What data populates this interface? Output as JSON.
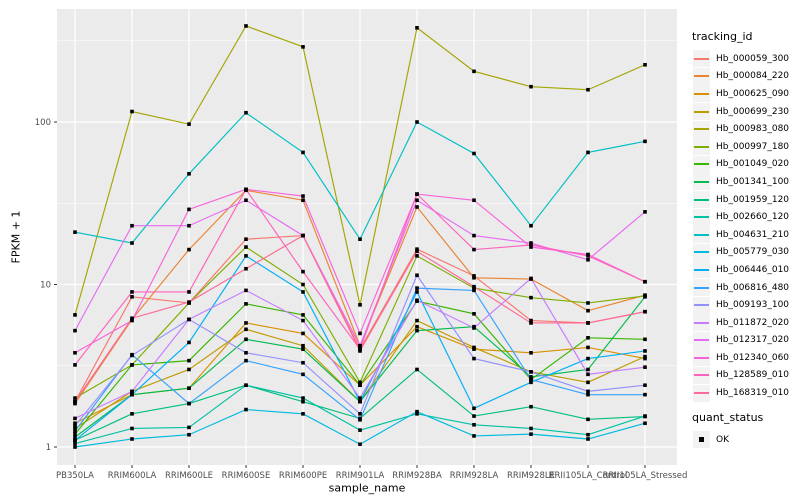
{
  "chart_data": {
    "type": "line",
    "title": "",
    "xlabel": "sample_name",
    "ylabel": "FPKM + 1",
    "y_scale": "log10",
    "ylim": [
      0.78,
      495
    ],
    "y_ticks": [
      1,
      10,
      100
    ],
    "grid": "ggplot-grey-theme",
    "panel_bg": "#EBEBEB",
    "gridline_color": "#FFFFFF",
    "tick_label_color": "#4D4D4D",
    "point_marker": "black-square",
    "legend_position": "right",
    "legend_title": "tracking_id",
    "categories": [
      "PB350LA",
      "RRIM600LA",
      "RRIM600LE",
      "RRIM600SE",
      "RRIM600PE",
      "RRIM901LA",
      "RRIM928BA",
      "RRIM928LA",
      "RRIM928LE",
      "RRII105LA_Control",
      "RRII105LA_Stressed"
    ],
    "series": [
      {
        "name": "Hb_000059_300",
        "color": "#F8766D",
        "values": [
          1.9,
          8.4,
          7.7,
          19,
          20,
          4.0,
          16.5,
          11.3,
          6.0,
          5.8,
          6.8
        ]
      },
      {
        "name": "Hb_000084_220",
        "color": "#EA8331",
        "values": [
          1.85,
          6.1,
          16.4,
          38,
          33,
          4.2,
          30,
          11.0,
          10.8,
          6.9,
          8.6
        ]
      },
      {
        "name": "Hb_000625_090",
        "color": "#D89000",
        "values": [
          1.4,
          2.1,
          2.3,
          5.8,
          5.0,
          2.4,
          5.5,
          4.0,
          3.8,
          4.1,
          3.5
        ]
      },
      {
        "name": "Hb_000699_230",
        "color": "#C09B00",
        "values": [
          1.3,
          2.2,
          3.0,
          5.3,
          4.2,
          1.9,
          6.0,
          4.1,
          2.9,
          2.5,
          3.6
        ]
      },
      {
        "name": "Hb_000983_080",
        "color": "#A3A500",
        "values": [
          6.5,
          116,
          97,
          390,
          290,
          7.5,
          380,
          205,
          165,
          158,
          225
        ]
      },
      {
        "name": "Hb_000997_180",
        "color": "#7CAE00",
        "values": [
          2.0,
          3.2,
          7.7,
          17,
          10,
          2.5,
          15,
          9.5,
          8.3,
          7.7,
          8.5
        ]
      },
      {
        "name": "Hb_001049_020",
        "color": "#39B600",
        "values": [
          1.2,
          3.2,
          3.4,
          7.6,
          6.5,
          2.4,
          7.9,
          6.6,
          2.6,
          4.7,
          4.6
        ]
      },
      {
        "name": "Hb_001341_100",
        "color": "#00BB4E",
        "values": [
          1.15,
          2.1,
          2.3,
          4.6,
          4.0,
          1.9,
          5.2,
          5.5,
          2.7,
          3.0,
          8.4
        ]
      },
      {
        "name": "Hb_001959_120",
        "color": "#00BF7D",
        "values": [
          1.1,
          1.6,
          1.85,
          2.4,
          1.9,
          1.5,
          3.0,
          1.55,
          1.77,
          1.48,
          1.54
        ]
      },
      {
        "name": "Hb_002660_120",
        "color": "#00C1A3",
        "values": [
          1.05,
          1.3,
          1.32,
          2.4,
          2.0,
          1.27,
          1.6,
          1.37,
          1.3,
          1.19,
          1.55
        ]
      },
      {
        "name": "Hb_004631_210",
        "color": "#00BFC4",
        "values": [
          21,
          18,
          48,
          114,
          65,
          19,
          100,
          64,
          23,
          65,
          76
        ]
      },
      {
        "name": "Hb_005779_030",
        "color": "#00BAE0",
        "values": [
          1.0,
          1.12,
          1.19,
          1.7,
          1.6,
          1.04,
          1.65,
          1.17,
          1.2,
          1.12,
          1.4
        ]
      },
      {
        "name": "Hb_006446_010",
        "color": "#00B0F6",
        "values": [
          1.1,
          2.1,
          4.4,
          15,
          9.0,
          1.9,
          9.0,
          1.73,
          2.5,
          3.5,
          3.9
        ]
      },
      {
        "name": "Hb_006816_480",
        "color": "#35A2FF",
        "values": [
          1.25,
          3.7,
          1.85,
          3.4,
          2.8,
          1.47,
          9.5,
          9.2,
          2.6,
          2.1,
          2.1
        ]
      },
      {
        "name": "Hb_009193_100",
        "color": "#9590FF",
        "values": [
          1.35,
          3.66,
          6.1,
          3.8,
          3.3,
          1.6,
          11.4,
          3.5,
          2.9,
          2.2,
          2.4
        ]
      },
      {
        "name": "Hb_011872_020",
        "color": "#C77CFF",
        "values": [
          1.5,
          2.2,
          6.1,
          9.2,
          6.0,
          2.0,
          8.0,
          5.4,
          10.9,
          2.8,
          3.1
        ]
      },
      {
        "name": "Hb_012317_020",
        "color": "#E76BF3",
        "values": [
          5.2,
          23,
          23,
          33,
          20,
          4.2,
          33,
          20,
          18,
          14.2,
          28
        ]
      },
      {
        "name": "Hb_012340_060",
        "color": "#FA62DB",
        "values": [
          3.8,
          6.0,
          29,
          38.5,
          35,
          5.0,
          36,
          33,
          17,
          15.3,
          10.4
        ]
      },
      {
        "name": "Hb_128589_010",
        "color": "#FF62BC",
        "values": [
          3.2,
          9.0,
          9.0,
          38.5,
          12,
          4.0,
          36,
          16.4,
          17.5,
          15.0,
          10.4
        ]
      },
      {
        "name": "Hb_168319_010",
        "color": "#FF6A98",
        "values": [
          1.9,
          6.2,
          7.8,
          12.5,
          20,
          3.9,
          16,
          9.7,
          5.8,
          5.8,
          6.8
        ]
      }
    ],
    "quant_status": {
      "title": "quant_status",
      "items": [
        {
          "label": "OK",
          "marker": "black-square"
        }
      ]
    }
  }
}
